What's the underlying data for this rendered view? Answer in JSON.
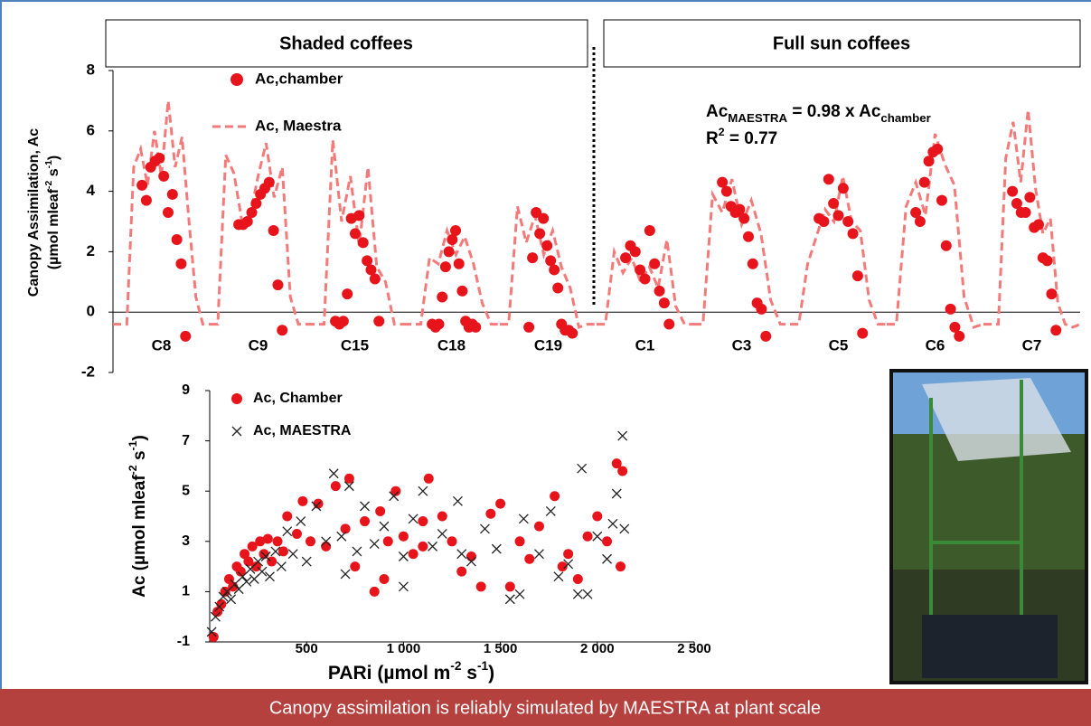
{
  "chart_data": [
    {
      "type": "panel-series",
      "panels": [
        "Shaded coffees",
        "Full sun coffees"
      ],
      "y_label": [
        [
          {
            "text": "Canopy Assimilation, Ac"
          }
        ],
        [
          {
            "text": "(µmol mleaf"
          },
          {
            "text": "-2",
            "sup": true
          },
          {
            "text": " s"
          },
          {
            "text": "-1",
            "sup": true
          },
          {
            "text": ")"
          }
        ]
      ],
      "annotation": [
        [
          {
            "text": "Ac"
          },
          {
            "text": "MAESTRA",
            "sub": true
          },
          {
            "text": " = 0.98 x Ac"
          },
          {
            "text": "chamber",
            "sub": true
          }
        ],
        [
          {
            "text": "R"
          },
          {
            "text": "2",
            "sup": true
          },
          {
            "text": " = 0.77"
          }
        ]
      ],
      "ylim": [
        -2,
        8
      ],
      "yticks": [
        -2,
        0,
        2,
        4,
        6,
        8
      ],
      "series": [
        {
          "name": "Ac,chamber",
          "color": "#e8141b"
        },
        {
          "name": "Ac, Maestra",
          "color": "#f47a7a"
        }
      ],
      "groups": [
        {
          "label": "C8",
          "maestra": [
            -0.4,
            -0.4,
            -0.4,
            4.8,
            5.4,
            4.2,
            6.0,
            4.5,
            7.0,
            4.8,
            5.8,
            3.0,
            0.5,
            -0.4,
            -0.4
          ],
          "chamber": [
            4.2,
            3.7,
            4.8,
            5.0,
            5.1,
            4.5,
            3.3,
            3.9,
            2.4,
            1.6,
            -0.8
          ]
        },
        {
          "label": "C9",
          "maestra": [
            -0.4,
            -0.4,
            5.2,
            4.6,
            3.0,
            3.2,
            4.5,
            5.6,
            3.8,
            4.8,
            0.5,
            -0.4,
            -0.4
          ],
          "chamber": [
            2.9,
            2.9,
            3.0,
            3.3,
            3.6,
            3.9,
            4.1,
            4.3,
            2.7,
            0.9,
            -0.6
          ]
        },
        {
          "label": "C15",
          "maestra": [
            -0.4,
            -0.4,
            -0.4,
            5.7,
            3.0,
            4.5,
            2.2,
            4.8,
            1.5,
            1.0,
            -0.4,
            -0.4
          ],
          "chamber": [
            -0.3,
            -0.4,
            -0.3,
            0.6,
            3.1,
            2.6,
            3.2,
            2.3,
            1.7,
            1.4,
            1.1,
            -0.3
          ]
        },
        {
          "label": "C18",
          "maestra": [
            -0.4,
            -0.4,
            -0.4,
            1.8,
            1.6,
            2.7,
            1.9,
            2.5,
            1.6,
            0.3,
            -0.4,
            -0.4
          ],
          "chamber": [
            -0.4,
            -0.5,
            -0.4,
            0.5,
            1.5,
            2.0,
            2.4,
            2.7,
            1.6,
            0.7,
            -0.3,
            -0.5,
            -0.4,
            -0.5
          ]
        },
        {
          "label": "C19",
          "maestra": [
            -0.4,
            -0.4,
            3.5,
            2.3,
            3.2,
            1.9,
            2.7,
            1.5,
            0.8,
            -0.5,
            -0.4,
            -0.4
          ],
          "chamber": [
            -0.5,
            1.8,
            3.3,
            2.6,
            3.1,
            2.2,
            1.7,
            1.4,
            0.8,
            -0.4,
            -0.6,
            -0.6,
            -0.7
          ]
        },
        {
          "label": "C1",
          "maestra": [
            -0.4,
            -0.4,
            2.0,
            1.3,
            1.8,
            1.0,
            1.5,
            0.8,
            2.4,
            0.2,
            -0.4,
            -0.4
          ],
          "chamber": [
            1.8,
            2.2,
            2.0,
            1.4,
            1.1,
            2.7,
            1.6,
            0.7,
            0.3,
            -0.4
          ]
        },
        {
          "label": "C3",
          "maestra": [
            -0.4,
            -0.4,
            3.9,
            3.3,
            4.4,
            2.9,
            3.7,
            2.6,
            0.4,
            -0.4,
            -0.4
          ],
          "chamber": [
            4.3,
            4.0,
            3.5,
            3.3,
            3.4,
            3.1,
            2.5,
            1.6,
            0.3,
            0.1,
            -0.8
          ]
        },
        {
          "label": "C5",
          "maestra": [
            -0.4,
            -0.4,
            1.6,
            2.5,
            3.4,
            3.0,
            4.5,
            3.0,
            2.7,
            0.4,
            -0.4,
            -0.4
          ],
          "chamber": [
            3.1,
            3.0,
            4.4,
            3.6,
            3.2,
            4.1,
            3.0,
            2.6,
            1.2,
            -0.7
          ]
        },
        {
          "label": "C6",
          "maestra": [
            -0.4,
            -0.4,
            3.5,
            4.3,
            3.2,
            5.9,
            4.9,
            4.2,
            0.5,
            -0.5,
            -0.4
          ],
          "chamber": [
            3.3,
            3.0,
            4.3,
            5.0,
            5.3,
            5.4,
            3.7,
            2.2,
            0.1,
            -0.5,
            -0.8
          ]
        },
        {
          "label": "C7",
          "maestra": [
            -0.4,
            -0.4,
            -0.4,
            5.1,
            6.3,
            4.3,
            6.7,
            4.1,
            2.6,
            3.1,
            0.3,
            -0.4,
            -0.5,
            -0.4
          ],
          "chamber": [
            4.0,
            3.6,
            3.3,
            3.3,
            3.8,
            2.8,
            2.9,
            1.8,
            1.7,
            0.6,
            -0.6
          ]
        }
      ]
    },
    {
      "type": "scatter",
      "y_label": [
        {
          "text": "Ac (µmol mleaf"
        },
        {
          "text": "-2",
          "sup": true
        },
        {
          "text": " s"
        },
        {
          "text": "-1",
          "sup": true
        },
        {
          "text": ")"
        }
      ],
      "x_label": [
        {
          "text": "PARi (µmol m"
        },
        {
          "text": "-2",
          "sup": true
        },
        {
          "text": " s"
        },
        {
          "text": "-1",
          "sup": true
        },
        {
          "text": ")"
        }
      ],
      "xlim": [
        0,
        2500
      ],
      "xticks": [
        500,
        {
          "value": 1000,
          "label": "1 000"
        },
        {
          "value": 1500,
          "label": "1 500"
        },
        {
          "value": 2000,
          "label": "2 000"
        },
        {
          "value": 2500,
          "label": "2 500"
        }
      ],
      "ylim": [
        -1,
        9
      ],
      "yticks": [
        -1,
        1,
        3,
        5,
        7,
        9
      ],
      "series": [
        {
          "name": "Ac, Chamber",
          "color": "#e8141b",
          "marker": "circle",
          "x": [
            20,
            40,
            60,
            80,
            100,
            120,
            140,
            160,
            180,
            200,
            220,
            240,
            260,
            280,
            300,
            320,
            350,
            380,
            400,
            450,
            480,
            520,
            560,
            600,
            650,
            700,
            720,
            750,
            800,
            850,
            880,
            920,
            960,
            1000,
            1050,
            1100,
            1130,
            1200,
            1250,
            1300,
            1350,
            1400,
            1450,
            1500,
            1600,
            1650,
            1700,
            1780,
            1850,
            1900,
            1950,
            2000,
            2100,
            2130,
            2120,
            2050,
            1820,
            1550,
            1100,
            900
          ],
          "values": [
            -0.8,
            0.2,
            0.5,
            1.0,
            1.5,
            1.2,
            2.0,
            1.8,
            2.5,
            2.2,
            2.8,
            2.0,
            3.0,
            2.5,
            3.1,
            2.2,
            3.0,
            2.6,
            4.0,
            3.3,
            4.6,
            3.0,
            4.5,
            2.8,
            5.2,
            3.5,
            5.5,
            2.0,
            3.8,
            1.0,
            4.2,
            3.0,
            5.0,
            3.2,
            2.5,
            3.8,
            5.5,
            4.0,
            3.0,
            1.8,
            2.4,
            1.2,
            4.1,
            4.5,
            3.0,
            2.3,
            3.6,
            4.8,
            2.5,
            1.5,
            3.2,
            4.0,
            6.1,
            5.8,
            2.0,
            3.0,
            2.0,
            1.2,
            2.8,
            1.5
          ]
        },
        {
          "name": "Ac, MAESTRA",
          "color": "#222222",
          "marker": "cross",
          "x": [
            10,
            30,
            50,
            70,
            90,
            110,
            130,
            150,
            170,
            190,
            210,
            230,
            250,
            270,
            290,
            310,
            340,
            370,
            400,
            430,
            470,
            500,
            550,
            600,
            640,
            680,
            720,
            760,
            800,
            850,
            900,
            950,
            1000,
            1050,
            1100,
            1150,
            1200,
            1280,
            1350,
            1420,
            1480,
            1550,
            1620,
            1700,
            1760,
            1800,
            1850,
            1920,
            1950,
            2000,
            2050,
            2080,
            2100,
            2130,
            2140,
            1900,
            1600,
            1300,
            1000,
            700
          ],
          "values": [
            -0.6,
            0.0,
            0.4,
            0.8,
            1.0,
            0.7,
            1.3,
            1.1,
            1.6,
            1.4,
            1.9,
            1.5,
            2.2,
            1.8,
            2.4,
            1.6,
            2.6,
            2.0,
            3.4,
            2.5,
            3.8,
            2.2,
            4.4,
            3.0,
            5.7,
            3.2,
            5.2,
            2.6,
            4.4,
            2.9,
            3.6,
            4.8,
            2.4,
            3.9,
            5.0,
            2.8,
            3.3,
            4.6,
            2.2,
            3.5,
            2.7,
            0.7,
            3.9,
            2.5,
            4.2,
            1.6,
            2.1,
            5.9,
            0.9,
            3.2,
            2.3,
            3.7,
            4.9,
            7.2,
            3.5,
            0.9,
            0.9,
            2.5,
            1.2,
            1.7
          ]
        }
      ]
    }
  ],
  "footer": "Canopy assimilation is reliably simulated by MAESTRA at plant scale"
}
